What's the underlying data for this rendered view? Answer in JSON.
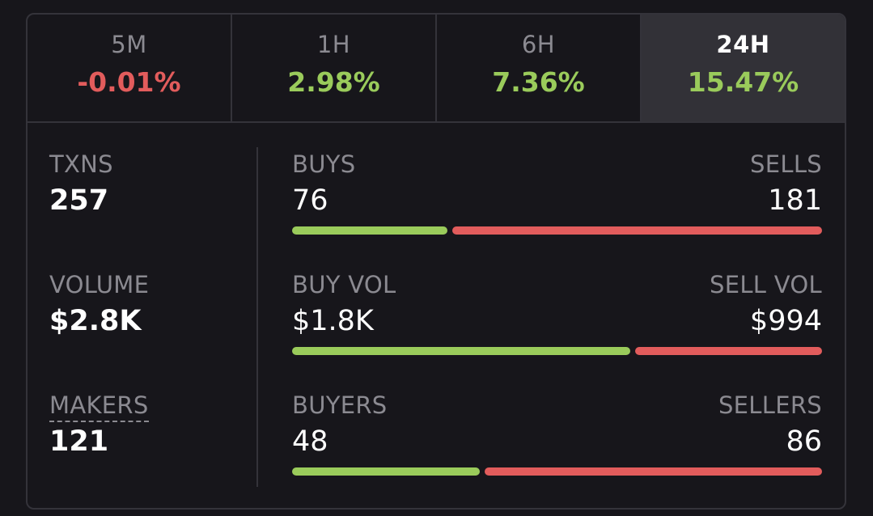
{
  "tabs": [
    {
      "label": "5M",
      "change": "-0.01%",
      "direction": "neg",
      "active": false
    },
    {
      "label": "1H",
      "change": "2.98%",
      "direction": "pos",
      "active": false
    },
    {
      "label": "6H",
      "change": "7.36%",
      "direction": "pos",
      "active": false
    },
    {
      "label": "24H",
      "change": "15.47%",
      "direction": "pos",
      "active": true
    }
  ],
  "stats": {
    "txns": {
      "label": "TXNS",
      "value": "257"
    },
    "volume": {
      "label": "VOLUME",
      "value": "$2.8K"
    },
    "makers": {
      "label": "MAKERS",
      "value": "121"
    }
  },
  "rows": {
    "trades": {
      "left_label": "BUYS",
      "right_label": "SELLS",
      "left_value": "76",
      "right_value": "181",
      "buy_ratio": 0.2957
    },
    "volume": {
      "left_label": "BUY VOL",
      "right_label": "SELL VOL",
      "left_value": "$1.8K",
      "right_value": "$994",
      "buy_ratio": 0.6442
    },
    "traders": {
      "left_label": "BUYERS",
      "right_label": "SELLERS",
      "left_value": "48",
      "right_value": "86",
      "buy_ratio": 0.3582
    }
  },
  "colors": {
    "positive": "#9acb5b",
    "negative": "#e25c5c",
    "background": "#17161b",
    "active_tab": "#323137"
  }
}
